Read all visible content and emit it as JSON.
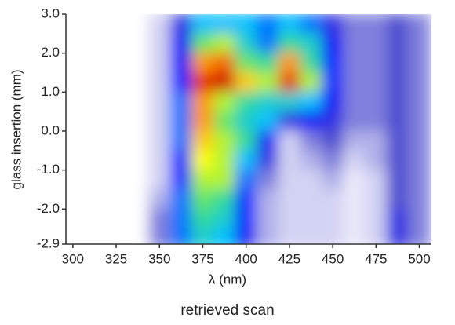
{
  "chart_data": {
    "type": "heatmap",
    "caption": "retrieved scan",
    "xlabel": "λ (nm)",
    "ylabel": "glass insertion (mm)",
    "x": [
      300,
      312.5,
      325,
      337.5,
      350,
      362.5,
      375,
      387.5,
      400,
      412.5,
      425,
      437.5,
      450,
      462.5,
      475,
      487.5,
      500
    ],
    "y": [
      2.75,
      2.25,
      1.75,
      1.25,
      0.75,
      0.25,
      -0.25,
      -0.75,
      -1.25,
      -1.75,
      -2.25,
      -2.75
    ],
    "z": [
      [
        0,
        0,
        0,
        0,
        0.1,
        0.3,
        0.5,
        0.5,
        0.5,
        0.45,
        0.5,
        0.45,
        0.3,
        0.2,
        0.2,
        0.25,
        0.2
      ],
      [
        0,
        0,
        0,
        0,
        0.1,
        0.35,
        0.65,
        0.7,
        0.55,
        0.45,
        0.6,
        0.55,
        0.35,
        0.2,
        0.2,
        0.25,
        0.2
      ],
      [
        0,
        0,
        0,
        0,
        0.1,
        0.35,
        0.85,
        0.9,
        0.65,
        0.6,
        0.85,
        0.6,
        0.4,
        0.2,
        0.2,
        0.25,
        0.2
      ],
      [
        0,
        0,
        0,
        0,
        0.1,
        0.4,
        0.95,
        1.0,
        0.8,
        0.7,
        0.95,
        0.7,
        0.4,
        0.2,
        0.2,
        0.25,
        0.2
      ],
      [
        0,
        0,
        0,
        0,
        0.1,
        0.45,
        0.85,
        0.7,
        0.6,
        0.55,
        0.55,
        0.5,
        0.35,
        0.2,
        0.2,
        0.25,
        0.2
      ],
      [
        0,
        0,
        0,
        0,
        0.1,
        0.45,
        0.85,
        0.65,
        0.55,
        0.5,
        0.3,
        0.35,
        0.3,
        0.2,
        0.2,
        0.25,
        0.2
      ],
      [
        0,
        0,
        0,
        0,
        0.1,
        0.45,
        0.8,
        0.7,
        0.6,
        0.35,
        0.1,
        0.2,
        0.25,
        0.15,
        0.15,
        0.25,
        0.2
      ],
      [
        0,
        0,
        0,
        0,
        0.1,
        0.4,
        0.75,
        0.7,
        0.5,
        0.3,
        0.1,
        0.15,
        0.2,
        0.1,
        0.15,
        0.25,
        0.2
      ],
      [
        0,
        0,
        0,
        0,
        0.1,
        0.4,
        0.7,
        0.7,
        0.45,
        0.2,
        0.1,
        0.1,
        0.15,
        0.05,
        0.1,
        0.25,
        0.2
      ],
      [
        0,
        0,
        0,
        0,
        0.15,
        0.45,
        0.65,
        0.6,
        0.4,
        0.15,
        0.1,
        0.1,
        0.1,
        0.05,
        0.1,
        0.25,
        0.2
      ],
      [
        0,
        0,
        0,
        0,
        0.2,
        0.45,
        0.6,
        0.55,
        0.4,
        0.15,
        0.1,
        0.1,
        0.1,
        0.05,
        0.1,
        0.3,
        0.2
      ],
      [
        0,
        0,
        0,
        0,
        0.2,
        0.45,
        0.55,
        0.5,
        0.35,
        0.15,
        0.1,
        0.1,
        0.1,
        0.05,
        0.1,
        0.3,
        0.2
      ]
    ],
    "zlim": [
      0,
      1
    ],
    "colorscale": [
      "#ffffff",
      "#c8c8f0",
      "#5050d0",
      "#0000ff",
      "#00c0ff",
      "#40e080",
      "#ffff00",
      "#ff8000",
      "#d00000"
    ],
    "xlim": [
      296,
      507
    ],
    "xticks": [
      300,
      325,
      350,
      375,
      400,
      425,
      450,
      475,
      500
    ],
    "ylim": [
      -2.9,
      3.0
    ],
    "yticks": [
      {
        "value": 3.0,
        "label": "3.0"
      },
      {
        "value": 2.0,
        "label": "2.0"
      },
      {
        "value": 1.0,
        "label": "1.0"
      },
      {
        "value": 0.0,
        "label": "0.0"
      },
      {
        "value": -1.0,
        "label": "-1.0"
      },
      {
        "value": -2.0,
        "label": "-2.0"
      },
      -2.9
    ]
  }
}
